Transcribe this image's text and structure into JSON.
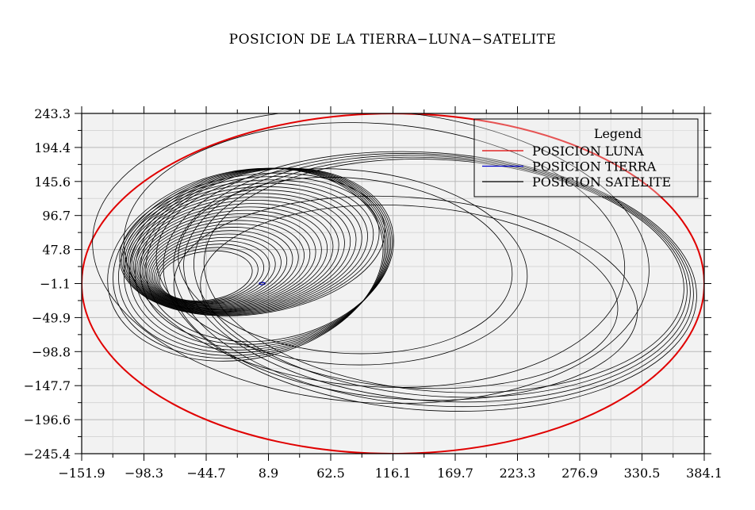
{
  "chart_data": {
    "type": "line",
    "title": "POSICION DE LA TIERRA−LUNA−SATELITE",
    "xlabel": "",
    "ylabel": "",
    "xlim": [
      -151.9,
      384.1
    ],
    "ylim": [
      -245.4,
      243.3
    ],
    "x_ticks": [
      "−151.9",
      "−98.3",
      "−44.7",
      "8.9",
      "62.5",
      "116.1",
      "169.7",
      "223.3",
      "276.9",
      "330.5",
      "384.1"
    ],
    "y_ticks": [
      "243.3",
      "194.4",
      "145.6",
      "96.7",
      "47.8",
      "−1.1",
      "−49.9",
      "−98.8",
      "−147.7",
      "−196.6",
      "−245.4"
    ],
    "grid": true,
    "legend": {
      "title": "Legend",
      "placement": "top-right",
      "entries": [
        {
          "label": "POSICION LUNA",
          "color": "#e00000"
        },
        {
          "label": "POSICION TIERRA",
          "color": "#0000cc"
        },
        {
          "label": "POSICION SATELITE",
          "color": "#000000"
        }
      ]
    },
    "series": [
      {
        "name": "POSICION LUNA",
        "color": "#e00000",
        "shape": "ellipse",
        "center": [
          116.1,
          -1.1
        ],
        "semi_axes": [
          268.0,
          244.3
        ]
      },
      {
        "name": "POSICION TIERRA",
        "color": "#0000cc",
        "shape": "ellipse",
        "center": [
          3.5,
          -1.1
        ],
        "semi_axes": [
          2.5,
          1.6
        ]
      },
      {
        "name": "POSICION SATELITE",
        "color": "#000000",
        "shape": "orbit-loops",
        "loops": [
          {
            "center": [
              10,
              40
            ],
            "semi_axes": [
              120,
              135
            ],
            "count": 8
          },
          {
            "center": [
              -5,
              55
            ],
            "semi_axes": [
              115,
              100
            ],
            "count": 24
          },
          {
            "center": [
              75,
              25
            ],
            "semi_axes": [
              160,
              140
            ],
            "count": 2
          },
          {
            "center": [
              130,
              -20
            ],
            "semi_axes": [
              200,
              145
            ],
            "count": 2
          },
          {
            "center": [
              160,
              10
            ],
            "semi_axes": [
              230,
              185
            ],
            "count": 5
          },
          {
            "center": [
              100,
              40
            ],
            "semi_axes": [
              240,
              210
            ],
            "count": 2
          }
        ]
      }
    ]
  }
}
